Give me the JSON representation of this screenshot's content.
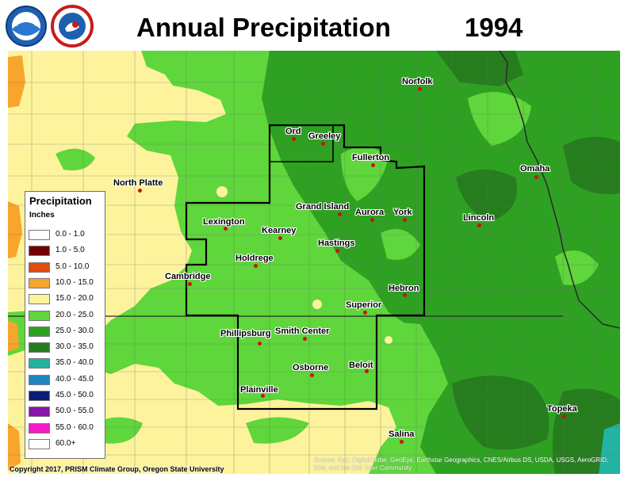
{
  "header": {
    "title": "Annual Precipitation",
    "year": "1994"
  },
  "logos": [
    {
      "name": "noaa-logo",
      "text": "NOAA"
    },
    {
      "name": "nws-logo",
      "text": "NATIONAL WEATHER SERVICE"
    }
  ],
  "legend": {
    "title": "Precipitation",
    "units": "Inches",
    "classes": [
      {
        "label": "0.0 - 1.0",
        "color": "#ffffff"
      },
      {
        "label": "1.0 - 5.0",
        "color": "#730000"
      },
      {
        "label": "5.0 - 10.0",
        "color": "#e34a0e"
      },
      {
        "label": "10.0 - 15.0",
        "color": "#f7a52c"
      },
      {
        "label": "15.0 - 20.0",
        "color": "#fdf39c"
      },
      {
        "label": "20.0 - 25.0",
        "color": "#5fd63b"
      },
      {
        "label": "25.0 - 30.0",
        "color": "#2ea122"
      },
      {
        "label": "30.0 - 35.0",
        "color": "#267d1e"
      },
      {
        "label": "35.0 - 40.0",
        "color": "#23b3a3"
      },
      {
        "label": "40.0 - 45.0",
        "color": "#1f84c2"
      },
      {
        "label": "45.0 - 50.0",
        "color": "#0a1c79"
      },
      {
        "label": "50.0 - 55.0",
        "color": "#8a12ad"
      },
      {
        "label": "55.0 - 60.0",
        "color": "#f21bc7"
      },
      {
        "label": "60.0+",
        "color": "#ffffff"
      }
    ]
  },
  "cities": [
    {
      "name": "Norfolk"
    },
    {
      "name": "Ord"
    },
    {
      "name": "Greeley"
    },
    {
      "name": "Fullerton"
    },
    {
      "name": "Omaha"
    },
    {
      "name": "North Platte"
    },
    {
      "name": "Grand Island"
    },
    {
      "name": "Aurora"
    },
    {
      "name": "York"
    },
    {
      "name": "Lincoln"
    },
    {
      "name": "Lexington"
    },
    {
      "name": "Kearney"
    },
    {
      "name": "Hastings"
    },
    {
      "name": "Holdrege"
    },
    {
      "name": "Cambridge"
    },
    {
      "name": "Hebron"
    },
    {
      "name": "Superior"
    },
    {
      "name": "Phillipsburg"
    },
    {
      "name": "Smith Center"
    },
    {
      "name": "Beloit"
    },
    {
      "name": "Osborne"
    },
    {
      "name": "Plainville"
    },
    {
      "name": "Topeka"
    },
    {
      "name": "Salina"
    }
  ],
  "footer": {
    "copyright": "Copyright 2017, PRISM Climate Group, Oregon State University",
    "source": "Source: Esri, DigitalGlobe, GeoEye, Earthstar Geographics, CNES/Airbus DS, USDA, USGS, AeroGRID, IGN, and the GIS User Community"
  }
}
